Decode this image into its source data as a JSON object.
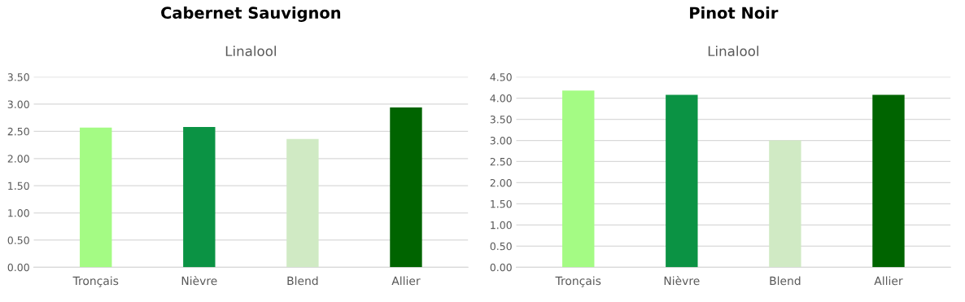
{
  "chart_data": [
    {
      "type": "bar",
      "title": "Cabernet Sauvignon",
      "subtitle": "Linalool",
      "categories": [
        "Tronçais",
        "Nièvre",
        "Blend",
        "Allier"
      ],
      "values": [
        2.57,
        2.58,
        2.36,
        2.94
      ],
      "colors": [
        "#a4fb84",
        "#0b9344",
        "#d0eac4",
        "#006400"
      ],
      "ylim": [
        0,
        3.5
      ],
      "yticks": [
        {
          "value": 0,
          "label": "0.00"
        },
        {
          "value": 0.5,
          "label": "0.50"
        },
        {
          "value": 1,
          "label": "1.00"
        },
        {
          "value": 1.5,
          "label": "1.50"
        },
        {
          "value": 2,
          "label": "2.00"
        },
        {
          "value": 2.5,
          "label": "2.50"
        },
        {
          "value": 3,
          "label": "3.00"
        },
        {
          "value": 3.5,
          "label": "3.50"
        }
      ],
      "grid": "y"
    },
    {
      "type": "bar",
      "title": "Pinot Noir",
      "subtitle": "Linalool",
      "categories": [
        "Tronçais",
        "Nièvre",
        "Blend",
        "Allier"
      ],
      "values": [
        4.18,
        4.08,
        3.0,
        4.08
      ],
      "colors": [
        "#a4fb84",
        "#0b9344",
        "#d0eac4",
        "#006400"
      ],
      "ylim": [
        0,
        4.5
      ],
      "yticks": [
        {
          "value": 0,
          "label": "0.00"
        },
        {
          "value": 0.5,
          "label": "0.50"
        },
        {
          "value": 1,
          "label": "1.00"
        },
        {
          "value": 1.5,
          "label": "1.50"
        },
        {
          "value": 2,
          "label": "2.00"
        },
        {
          "value": 2.5,
          "label": "2.50"
        },
        {
          "value": 3,
          "label": "3.00"
        },
        {
          "value": 3.5,
          "label": "3.50"
        },
        {
          "value": 4,
          "label": "4.00"
        },
        {
          "value": 4.5,
          "label": "4.50"
        }
      ],
      "grid": "y"
    }
  ]
}
